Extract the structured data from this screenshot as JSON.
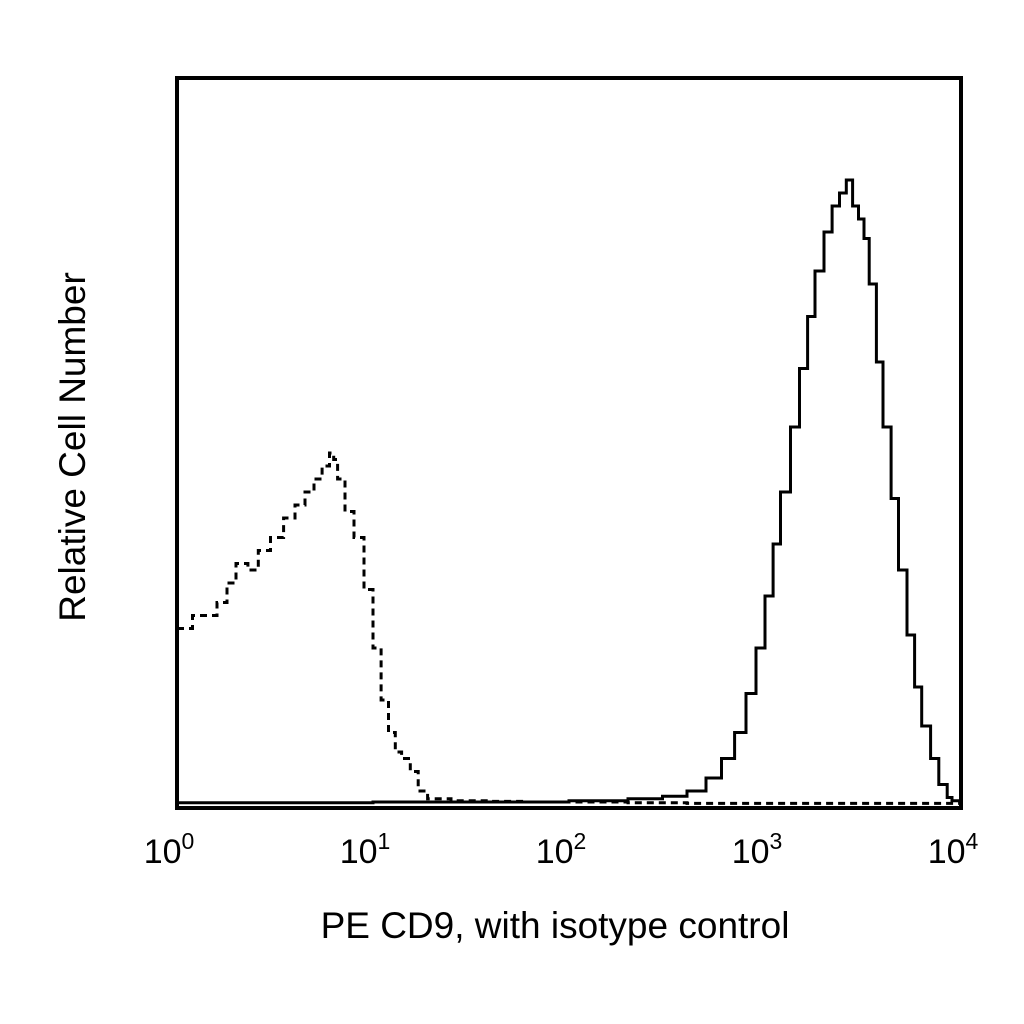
{
  "chart_data": {
    "type": "area",
    "xlabel": "PE CD9, with isotype control",
    "ylabel": "Relative Cell Number",
    "x_scale": "log",
    "xlim": [
      1,
      10000
    ],
    "ylim": [
      0,
      100
    ],
    "grid": false,
    "x_ticks": [
      {
        "base": "10",
        "exp": "0",
        "value": 1
      },
      {
        "base": "10",
        "exp": "1",
        "value": 10
      },
      {
        "base": "10",
        "exp": "2",
        "value": 100
      },
      {
        "base": "10",
        "exp": "3",
        "value": 1000
      },
      {
        "base": "10",
        "exp": "4",
        "value": 10000
      }
    ],
    "series": [
      {
        "style": "dashed",
        "color": "#000000",
        "points": [
          [
            1.0,
            27
          ],
          [
            1.2,
            29
          ],
          [
            1.4,
            29
          ],
          [
            1.6,
            31
          ],
          [
            1.8,
            34
          ],
          [
            2.0,
            37
          ],
          [
            2.3,
            36
          ],
          [
            2.6,
            39
          ],
          [
            3.0,
            41
          ],
          [
            3.5,
            44
          ],
          [
            4.0,
            46
          ],
          [
            4.5,
            48
          ],
          [
            5.0,
            50
          ],
          [
            5.5,
            52
          ],
          [
            6.0,
            54
          ],
          [
            6.3,
            53
          ],
          [
            6.6,
            50
          ],
          [
            7.2,
            45
          ],
          [
            8.0,
            41
          ],
          [
            9.0,
            33
          ],
          [
            10.0,
            24
          ],
          [
            11.0,
            16
          ],
          [
            12.0,
            11
          ],
          [
            13.0,
            8
          ],
          [
            14.0,
            7
          ],
          [
            15.5,
            5
          ],
          [
            17.0,
            2
          ],
          [
            19.0,
            0.8
          ],
          [
            25.0,
            0.5
          ],
          [
            40.0,
            0.4
          ],
          [
            60.0,
            0.3
          ],
          [
            100.0,
            0.3
          ],
          [
            200.0,
            0.2
          ],
          [
            400.0,
            0.1
          ],
          [
            1000.0,
            0.1
          ],
          [
            3000.0,
            0.1
          ],
          [
            10000.0,
            0
          ]
        ]
      },
      {
        "style": "solid",
        "color": "#000000",
        "points": [
          [
            1.0,
            0.2
          ],
          [
            10.0,
            0.3
          ],
          [
            100.0,
            0.5
          ],
          [
            200.0,
            0.8
          ],
          [
            300.0,
            1.2
          ],
          [
            400.0,
            2
          ],
          [
            500.0,
            4
          ],
          [
            600.0,
            7
          ],
          [
            700.0,
            11
          ],
          [
            800.0,
            17
          ],
          [
            900.0,
            24
          ],
          [
            1000.0,
            32
          ],
          [
            1100.0,
            40
          ],
          [
            1200.0,
            48
          ],
          [
            1350.0,
            58
          ],
          [
            1500.0,
            67
          ],
          [
            1650.0,
            75
          ],
          [
            1800.0,
            82
          ],
          [
            2000.0,
            88
          ],
          [
            2200.0,
            92
          ],
          [
            2400.0,
            94
          ],
          [
            2600.0,
            96
          ],
          [
            2800.0,
            92
          ],
          [
            3000.0,
            90
          ],
          [
            3200.0,
            87
          ],
          [
            3400.0,
            80
          ],
          [
            3700.0,
            68
          ],
          [
            4000.0,
            58
          ],
          [
            4400.0,
            47
          ],
          [
            4800.0,
            36
          ],
          [
            5300.0,
            26
          ],
          [
            5800.0,
            18
          ],
          [
            6300.0,
            12
          ],
          [
            7000.0,
            7
          ],
          [
            7700.0,
            3
          ],
          [
            8500.0,
            1
          ],
          [
            9000.0,
            0.5
          ],
          [
            10000.0,
            0
          ]
        ]
      }
    ]
  }
}
